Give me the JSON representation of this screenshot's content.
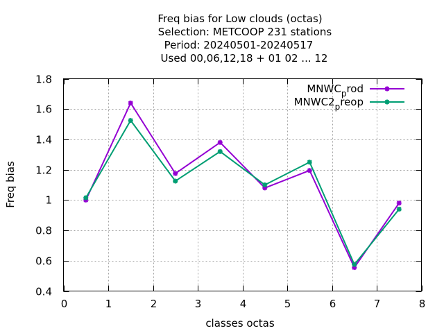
{
  "chart_data": {
    "type": "line",
    "title_lines": [
      "Freq bias  for Low clouds (octas)",
      "Selection: METCOOP    231 stations",
      "Period: 20240501-20240517",
      "Used  00,06,12,18 + 01 02 ... 12"
    ],
    "xlabel": "classes octas",
    "ylabel": "Freq bias",
    "xlim": [
      0,
      8
    ],
    "ylim": [
      0.4,
      1.8
    ],
    "x_ticks": [
      "0",
      "1",
      "2",
      "3",
      "4",
      "5",
      "6",
      "7",
      "8"
    ],
    "y_ticks": [
      "0.4",
      "0.6",
      "0.8",
      "1",
      "1.2",
      "1.4",
      "1.6",
      "1.8"
    ],
    "grid": true,
    "legend_position": "top-right",
    "x": [
      0.5,
      1.5,
      2.5,
      3.5,
      4.5,
      5.5,
      6.5,
      7.5
    ],
    "series": [
      {
        "name_main": "MNWC",
        "name_sub": "p",
        "name_tail": "rod",
        "color": "#9400d3",
        "values": [
          1.0,
          1.64,
          1.175,
          1.38,
          1.08,
          1.195,
          0.555,
          0.98
        ]
      },
      {
        "name_main": "MNWC2",
        "name_sub": "p",
        "name_tail": "reop",
        "color": "#009e73",
        "values": [
          1.015,
          1.525,
          1.125,
          1.32,
          1.1,
          1.25,
          0.575,
          0.94
        ]
      }
    ]
  }
}
